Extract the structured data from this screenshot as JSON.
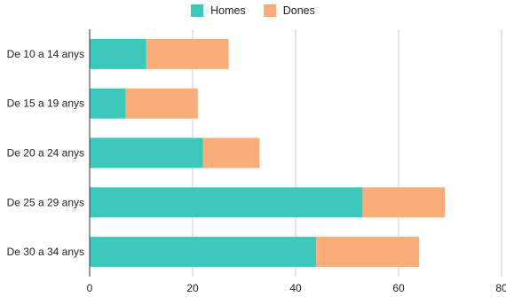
{
  "chart_data": {
    "type": "bar",
    "orientation": "horizontal",
    "stacked": true,
    "categories": [
      "De 10 a 14 anys",
      "De 15 a 19 anys",
      "De 20 a 24 anys",
      "De 25 a 29 anys",
      "De 30 a 34 anys"
    ],
    "series": [
      {
        "name": "Homes",
        "values": [
          11,
          7,
          22,
          53,
          44
        ],
        "color": "#3cc8bb"
      },
      {
        "name": "Dones",
        "values": [
          16,
          14,
          11,
          16,
          20
        ],
        "color": "#f9ad78"
      }
    ],
    "x_ticks": [
      "0",
      "20",
      "40",
      "60",
      "80"
    ],
    "xlim": [
      0,
      80
    ],
    "grid": true,
    "legend_position": "top-center"
  }
}
